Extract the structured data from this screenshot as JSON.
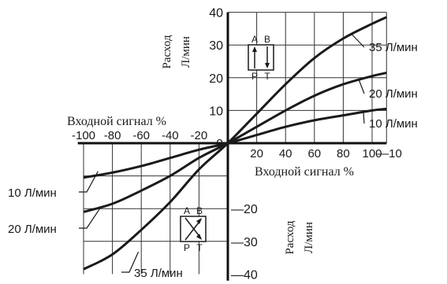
{
  "chart_data": {
    "type": "line",
    "x_tick_labels_neg": [
      "-100",
      "-80",
      "-60",
      "-40",
      "-20"
    ],
    "x_tick_labels_pos": [
      "20",
      "40",
      "60",
      "80",
      "100",
      "—10"
    ],
    "y_tick_labels_pos": [
      "40",
      "30",
      "20",
      "10",
      "0"
    ],
    "y_tick_labels_neg": [
      "—20",
      "—30",
      "—40"
    ],
    "x_label_upper": "Входной сигнал  %",
    "x_label_lower": "Входной сигнал   %",
    "y_label_upper": [
      "Расход",
      "Л/мин"
    ],
    "y_label_lower": [
      "Расход",
      "Л/мин"
    ],
    "series": [
      {
        "name": "35 Л/мин",
        "color": "#1a1a1a",
        "points": [
          [
            -100,
            -38.5
          ],
          [
            -80,
            -34
          ],
          [
            -60,
            -26.5
          ],
          [
            -40,
            -18
          ],
          [
            -20,
            -8
          ],
          [
            0,
            0
          ],
          [
            20,
            9
          ],
          [
            40,
            18
          ],
          [
            60,
            26
          ],
          [
            80,
            32
          ],
          [
            100,
            36.5
          ],
          [
            110,
            38.5
          ]
        ]
      },
      {
        "name": "20 Л/мин",
        "color": "#1a1a1a",
        "points": [
          [
            -100,
            -21
          ],
          [
            -80,
            -18.5
          ],
          [
            -60,
            -14.5
          ],
          [
            -40,
            -10
          ],
          [
            -20,
            -4.5
          ],
          [
            0,
            0
          ],
          [
            20,
            5
          ],
          [
            40,
            10
          ],
          [
            60,
            14.5
          ],
          [
            80,
            18
          ],
          [
            100,
            20.5
          ],
          [
            110,
            21.5
          ]
        ]
      },
      {
        "name": "10 Л/мин",
        "color": "#1a1a1a",
        "points": [
          [
            -100,
            -10.5
          ],
          [
            -80,
            -9
          ],
          [
            -60,
            -7
          ],
          [
            -40,
            -4.5
          ],
          [
            -20,
            -2
          ],
          [
            0,
            0
          ],
          [
            20,
            2.5
          ],
          [
            40,
            5
          ],
          [
            60,
            7
          ],
          [
            80,
            8.5
          ],
          [
            100,
            10
          ],
          [
            110,
            10.5
          ]
        ]
      }
    ],
    "series_labels_right": [
      "35 Л/мин",
      "20 Л/мин",
      "10 Л/мин"
    ],
    "series_labels_left": [
      "10 Л/мин",
      "20 Л/мин",
      "35 Л/мин"
    ],
    "valve_upper": {
      "a": "A",
      "b": "B",
      "p": "P",
      "t": "T"
    },
    "valve_lower": {
      "a": "A",
      "b": "B",
      "p": "P",
      "t": "T"
    },
    "xlim": [
      -100,
      110
    ],
    "ylim": [
      -40,
      40
    ],
    "grid": true
  }
}
